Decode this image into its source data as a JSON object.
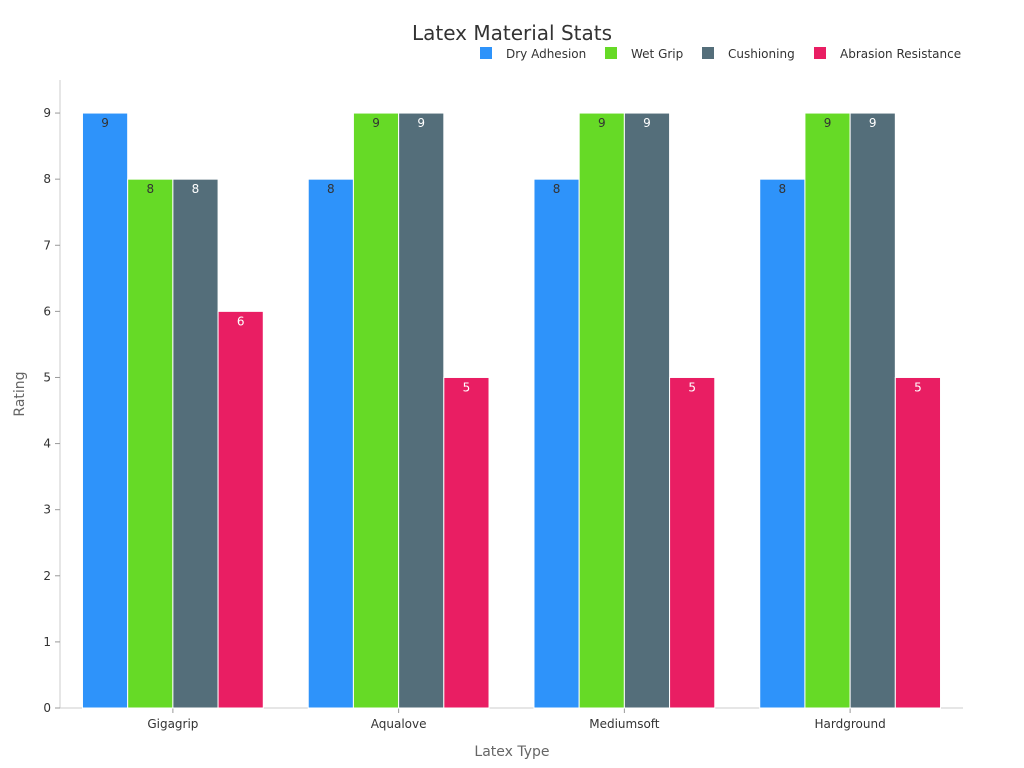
{
  "chart_data": {
    "type": "bar",
    "title": "Latex Material Stats",
    "xlabel": "Latex Type",
    "ylabel": "Rating",
    "categories": [
      "Gigagrip",
      "Aqualove",
      "Mediumsoft",
      "Hardground"
    ],
    "ylim": [
      0,
      9.5
    ],
    "yticks": [
      0,
      1,
      2,
      3,
      4,
      5,
      6,
      7,
      8,
      9
    ],
    "grid": false,
    "legend_position": "top-right",
    "series": [
      {
        "name": "Dry Adhesion",
        "color": "#2E93FA",
        "label_color": "#333333",
        "values": [
          9,
          8,
          8,
          8
        ]
      },
      {
        "name": "Wet Grip",
        "color": "#66DA26",
        "label_color": "#333333",
        "values": [
          8,
          9,
          9,
          9
        ]
      },
      {
        "name": "Cushioning",
        "color": "#546E7A",
        "label_color": "#ffffff",
        "values": [
          8,
          9,
          9,
          9
        ]
      },
      {
        "name": "Abrasion Resistance",
        "color": "#E91E63",
        "label_color": "#ffffff",
        "values": [
          6,
          5,
          5,
          5
        ]
      }
    ]
  }
}
